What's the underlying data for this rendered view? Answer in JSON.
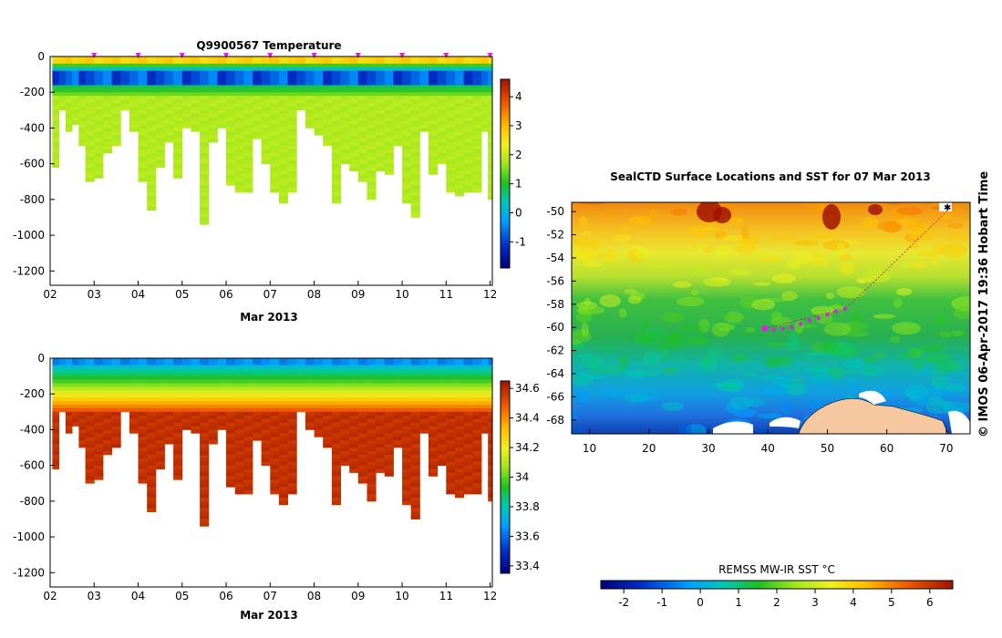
{
  "chart_data": [
    {
      "type": "heatmap",
      "title": "Q9900567  Temperature",
      "xlabel": "Mar 2013",
      "ylabel": "",
      "x_ticks": [
        "02",
        "03",
        "04",
        "05",
        "06",
        "07",
        "08",
        "09",
        "10",
        "11",
        "12"
      ],
      "y_ticks": [
        0,
        -200,
        -400,
        -600,
        -800,
        -1000,
        -1200
      ],
      "xlim": [
        2,
        12.05
      ],
      "ylim": [
        -1280,
        0
      ],
      "colorbar": {
        "ticks": [
          -1,
          0,
          1,
          2,
          3,
          4
        ],
        "range": [
          -1.9,
          4.6
        ]
      },
      "profile_times": [
        2.05,
        2.2,
        2.35,
        2.5,
        2.65,
        2.8,
        3.0,
        3.2,
        3.4,
        3.6,
        3.8,
        4.0,
        4.2,
        4.4,
        4.6,
        4.8,
        5.0,
        5.2,
        5.4,
        5.6,
        5.8,
        6.0,
        6.2,
        6.4,
        6.6,
        6.8,
        7.0,
        7.2,
        7.4,
        7.6,
        7.8,
        8.0,
        8.2,
        8.4,
        8.6,
        8.8,
        9.0,
        9.2,
        9.4,
        9.6,
        9.8,
        10.0,
        10.2,
        10.4,
        10.6,
        10.8,
        11.0,
        11.2,
        11.4,
        11.6,
        11.8,
        11.95
      ],
      "profile_max_depth": [
        620,
        300,
        420,
        380,
        500,
        700,
        680,
        540,
        500,
        300,
        420,
        700,
        850,
        620,
        480,
        680,
        400,
        420,
        930,
        480,
        400,
        720,
        750,
        750,
        460,
        600,
        760,
        810,
        760,
        300,
        400,
        440,
        500,
        820,
        600,
        630,
        700,
        790,
        630,
        650,
        500,
        810,
        890,
        420,
        660,
        600,
        760,
        780,
        760,
        760,
        420,
        800
      ],
      "surface_markers": [
        3,
        4,
        5,
        6,
        7,
        8,
        9,
        10,
        11,
        12
      ]
    },
    {
      "type": "heatmap",
      "title": "",
      "xlabel": "Mar 2013",
      "ylabel": "",
      "x_ticks": [
        "02",
        "03",
        "04",
        "05",
        "06",
        "07",
        "08",
        "09",
        "10",
        "11",
        "12"
      ],
      "y_ticks": [
        0,
        -200,
        -400,
        -600,
        -800,
        -1000,
        -1200
      ],
      "xlim": [
        2,
        12.05
      ],
      "ylim": [
        -1280,
        0
      ],
      "colorbar": {
        "ticks": [
          33.4,
          33.6,
          33.8,
          34,
          34.2,
          34.4,
          34.6
        ],
        "range": [
          33.35,
          34.65
        ]
      }
    },
    {
      "type": "heatmap",
      "title": "SealCTD Surface Locations and SST for 07 Mar 2013",
      "xlabel": "",
      "ylabel": "",
      "x_ticks": [
        10,
        20,
        30,
        40,
        50,
        60,
        70
      ],
      "y_ticks": [
        -50,
        -52,
        -54,
        -56,
        -58,
        -60,
        -62,
        -64,
        -66,
        -68
      ],
      "xlim": [
        7,
        74
      ],
      "ylim": [
        -69.2,
        -49.2
      ],
      "colorbar": {
        "label": "REMSS MW-IR SST °C",
        "ticks": [
          -2,
          -1,
          0,
          1,
          2,
          3,
          4,
          5,
          6
        ],
        "range": [
          -2.6,
          6.6
        ]
      },
      "seal_locations": [
        [
          39.5,
          -60.1
        ],
        [
          41,
          -60.2
        ],
        [
          42.5,
          -60.1
        ],
        [
          44,
          -60.0
        ],
        [
          45.5,
          -59.7
        ],
        [
          47,
          -59.4
        ],
        [
          48.5,
          -59.2
        ],
        [
          50,
          -58.9
        ],
        [
          51.5,
          -58.6
        ],
        [
          53,
          -58.4
        ]
      ],
      "track": [
        [
          39.5,
          -60.1
        ],
        [
          53,
          -58.4
        ],
        [
          57,
          -56.5
        ],
        [
          61,
          -54.5
        ],
        [
          65,
          -52.5
        ],
        [
          69,
          -50.5
        ],
        [
          70.5,
          -49.8
        ]
      ],
      "release_point": [
        70.2,
        -49.6
      ]
    }
  ],
  "credit": "© IMOS 06-Apr-2017 19:36 Hobart Time"
}
